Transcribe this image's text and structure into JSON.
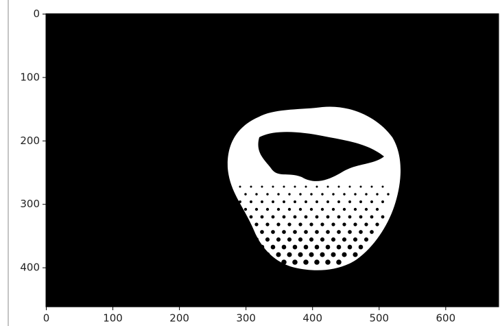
{
  "chart_data": {
    "type": "image",
    "xlim": [
      -0.5,
      679.5
    ],
    "ylim": [
      461.5,
      -0.5
    ],
    "xticks": [
      0,
      100,
      200,
      300,
      400,
      500,
      600
    ],
    "yticks": [
      0,
      100,
      200,
      300,
      400
    ]
  }
}
